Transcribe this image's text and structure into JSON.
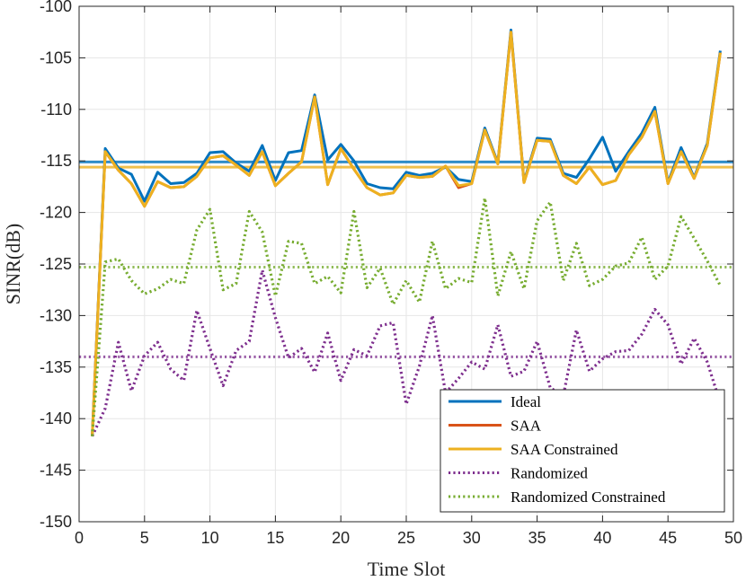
{
  "chart_data": {
    "type": "line",
    "title": "",
    "xlabel": "Time Slot",
    "ylabel": "SINR(dB)",
    "xlim": [
      0,
      50
    ],
    "ylim": [
      -150,
      -100
    ],
    "xticks": [
      0,
      5,
      10,
      15,
      20,
      25,
      30,
      35,
      40,
      45,
      50
    ],
    "yticks": [
      -150,
      -145,
      -140,
      -135,
      -130,
      -125,
      -120,
      -115,
      -110,
      -105,
      -100
    ],
    "grid": true,
    "legend_position": "bottom-right",
    "x": [
      1,
      2,
      3,
      4,
      5,
      6,
      7,
      8,
      9,
      10,
      11,
      12,
      13,
      14,
      15,
      16,
      17,
      18,
      19,
      20,
      21,
      22,
      23,
      24,
      25,
      26,
      27,
      28,
      29,
      30,
      31,
      32,
      33,
      34,
      35,
      36,
      37,
      38,
      39,
      40,
      41,
      42,
      43,
      44,
      45,
      46,
      47,
      48,
      49
    ],
    "series": [
      {
        "name": "Ideal",
        "color": "#0072BD",
        "style": "solid",
        "values": [
          -141.7,
          -113.8,
          -115.7,
          -116.3,
          -118.9,
          -116.1,
          -117.2,
          -117.1,
          -116.2,
          -114.2,
          -114.1,
          -115.2,
          -116.0,
          -113.5,
          -116.9,
          -114.2,
          -114.0,
          -108.6,
          -114.9,
          -113.4,
          -115.0,
          -117.2,
          -117.6,
          -117.7,
          -116.1,
          -116.4,
          -116.2,
          -115.6,
          -116.8,
          -117.0,
          -111.8,
          -115.2,
          -102.3,
          -117.0,
          -112.8,
          -112.9,
          -116.2,
          -116.6,
          -114.8,
          -112.7,
          -116.0,
          -114.1,
          -112.3,
          -109.8,
          -117.1,
          -113.7,
          -116.6,
          -113.3,
          -104.3
        ]
      },
      {
        "name": "SAA",
        "color": "#D95319",
        "style": "solid",
        "values": [
          -141.7,
          -114.1,
          -115.9,
          -117.2,
          -119.4,
          -117.0,
          -117.6,
          -117.5,
          -116.5,
          -114.7,
          -114.5,
          -115.4,
          -116.4,
          -114.1,
          -117.4,
          -116.2,
          -115.1,
          -108.8,
          -117.3,
          -113.8,
          -115.8,
          -117.6,
          -118.3,
          -118.1,
          -116.4,
          -116.6,
          -116.5,
          -115.5,
          -117.6,
          -117.2,
          -112.0,
          -115.3,
          -102.5,
          -117.1,
          -113.0,
          -113.1,
          -116.4,
          -117.2,
          -115.6,
          -117.3,
          -116.9,
          -114.4,
          -112.7,
          -110.2,
          -117.2,
          -114.1,
          -116.7,
          -113.5,
          -104.5
        ]
      },
      {
        "name": "SAA Constrained",
        "color": "#EDB120",
        "style": "solid",
        "values": [
          -141.7,
          -114.1,
          -115.9,
          -117.2,
          -119.4,
          -117.0,
          -117.6,
          -117.5,
          -116.5,
          -114.7,
          -114.5,
          -115.4,
          -116.4,
          -114.1,
          -117.4,
          -116.2,
          -115.1,
          -108.8,
          -117.3,
          -113.8,
          -115.8,
          -117.6,
          -118.3,
          -118.1,
          -116.4,
          -116.6,
          -116.5,
          -115.5,
          -117.4,
          -117.2,
          -112.0,
          -115.3,
          -102.5,
          -117.1,
          -113.0,
          -113.1,
          -116.4,
          -117.2,
          -115.6,
          -117.3,
          -116.9,
          -114.4,
          -112.7,
          -110.2,
          -117.2,
          -114.1,
          -116.7,
          -113.5,
          -104.5
        ]
      },
      {
        "name": "Randomized",
        "color": "#7E2F8E",
        "style": "dotted",
        "values": [
          -141.7,
          -139.0,
          -132.6,
          -137.3,
          -133.9,
          -132.6,
          -135.2,
          -136.3,
          -129.5,
          -133.2,
          -136.8,
          -133.4,
          -132.5,
          -125.6,
          -130.2,
          -134.1,
          -133.2,
          -135.5,
          -131.7,
          -136.3,
          -133.3,
          -133.9,
          -131.0,
          -130.7,
          -138.6,
          -134.9,
          -130.0,
          -137.5,
          -136.1,
          -134.5,
          -135.2,
          -130.9,
          -135.9,
          -135.4,
          -132.5,
          -137.0,
          -137.8,
          -131.4,
          -135.4,
          -134.2,
          -133.5,
          -133.4,
          -131.8,
          -129.4,
          -130.9,
          -134.7,
          -132.2,
          -134.5,
          -138.5
        ]
      },
      {
        "name": "Randomized Constrained",
        "color": "#77AC30",
        "style": "dotted",
        "values": [
          -141.7,
          -124.8,
          -124.5,
          -126.6,
          -127.9,
          -127.4,
          -126.5,
          -126.9,
          -121.7,
          -119.7,
          -127.5,
          -126.9,
          -119.9,
          -121.9,
          -128.1,
          -122.8,
          -123.0,
          -126.9,
          -126.2,
          -127.8,
          -119.9,
          -127.3,
          -125.4,
          -128.9,
          -126.6,
          -128.7,
          -122.8,
          -127.4,
          -126.4,
          -126.8,
          -118.6,
          -128.1,
          -123.8,
          -127.4,
          -120.8,
          -119.0,
          -126.6,
          -123.0,
          -127.1,
          -126.5,
          -125.2,
          -124.9,
          -122.4,
          -126.5,
          -125.2,
          -120.4,
          -122.5,
          -124.7,
          -127.1
        ]
      }
    ],
    "reference_lines": [
      {
        "name": "Ideal mean",
        "color": "#0072BD",
        "style": "solid",
        "value": -115.1
      },
      {
        "name": "SAA Constrained mean",
        "color": "#EDB120",
        "style": "solid",
        "value": -115.6
      },
      {
        "name": "Randomized Constrained mean",
        "color": "#77AC30",
        "style": "dotted",
        "value": -125.3
      },
      {
        "name": "Randomized mean",
        "color": "#7E2F8E",
        "style": "dotted",
        "value": -134.0
      }
    ]
  }
}
